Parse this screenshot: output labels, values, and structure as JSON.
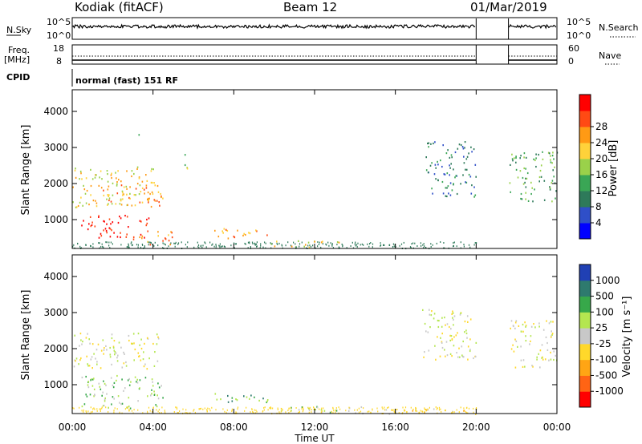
{
  "header": {
    "radar": "Kodiak (fitACF)",
    "beam": "Beam 12",
    "date": "01/Mar/2019"
  },
  "meta_panels": {
    "nsky_label": "N.Sky",
    "nsky_ticks": [
      "10^5",
      "10^0"
    ],
    "nsearch_label": "N.Search",
    "freq_label_1": "Freq.",
    "freq_label_2": "[MHz]",
    "freq_ticks": [
      "18",
      "8"
    ],
    "nave_ticks": [
      "60",
      "0"
    ],
    "nave_label": "Nave",
    "cpid_label": "CPID",
    "cpid_text": "normal (fast) 151 RF"
  },
  "colors": {
    "power_scale": [
      "#0000ff",
      "#2f4fc8",
      "#2e7a5a",
      "#3aa655",
      "#9ad14a",
      "#ffd23a",
      "#ff9a14",
      "#ff4a14",
      "#ff0000"
    ],
    "velocity_scale": [
      "#ff0000",
      "#ff6414",
      "#ffa514",
      "#ffd82a",
      "#c8c8c8",
      "#b4e650",
      "#37a84a",
      "#2e7a6e",
      "#2040b4"
    ]
  },
  "chart_data": [
    {
      "type": "heatmap",
      "name": "power",
      "ylabel": "Slant Range [km]",
      "yticks": [
        1000,
        2000,
        3000,
        4000
      ],
      "ylim": [
        200,
        4600
      ],
      "xlim_hours": [
        0,
        24
      ],
      "xtick_labels": [
        "00:00",
        "04:00",
        "08:00",
        "12:00",
        "16:00",
        "20:00",
        "00:00"
      ],
      "colorbar_label": "Power [dB]",
      "colorbar_ticks": [
        "4",
        "8",
        "12",
        "16",
        "20",
        "24",
        "28"
      ],
      "regions": [
        {
          "t0": 0.0,
          "t1": 4.2,
          "r0": 1350,
          "r1": 2500,
          "level": 5
        },
        {
          "t0": 0.4,
          "t1": 3.8,
          "r0": 500,
          "r1": 1150,
          "level": 8
        },
        {
          "t0": 1.5,
          "t1": 4.5,
          "r0": 1400,
          "r1": 2000,
          "level": 6
        },
        {
          "t0": 3.0,
          "t1": 5.0,
          "r0": 300,
          "r1": 700,
          "level": 6
        },
        {
          "t0": 3.2,
          "t1": 3.4,
          "r0": 3300,
          "r1": 3450,
          "level": 3
        },
        {
          "t0": 5.5,
          "t1": 5.8,
          "r0": 2400,
          "r1": 2950,
          "level": 4
        },
        {
          "t0": 7.0,
          "t1": 10.0,
          "r0": 500,
          "r1": 780,
          "level": 6
        },
        {
          "t0": 9.8,
          "t1": 13.5,
          "r0": 250,
          "r1": 450,
          "level": 5
        },
        {
          "t0": 17.5,
          "t1": 20.0,
          "r0": 1650,
          "r1": 3200,
          "level": 2
        },
        {
          "t0": 21.6,
          "t1": 24.0,
          "r0": 1500,
          "r1": 2900,
          "level": 3
        }
      ]
    },
    {
      "type": "heatmap",
      "name": "velocity",
      "ylabel": "Slant Range [km]",
      "yticks": [
        1000,
        2000,
        3000,
        4000
      ],
      "ylim": [
        200,
        4600
      ],
      "xlim_hours": [
        0,
        24
      ],
      "xtick_labels": [
        "00:00",
        "04:00",
        "08:00",
        "12:00",
        "16:00",
        "20:00",
        "00:00"
      ],
      "xlabel": "Time UT",
      "colorbar_label": "Velocity [m s⁻¹]",
      "colorbar_ticks": [
        "1000",
        "500",
        "100",
        "25",
        "-25",
        "-100",
        "-500",
        "-1000"
      ],
      "regions": [
        {
          "t0": 0.0,
          "t1": 4.3,
          "r0": 1450,
          "r1": 2450,
          "level": 4
        },
        {
          "t0": 0.4,
          "t1": 4.5,
          "r0": 350,
          "r1": 1300,
          "level": 5
        },
        {
          "t0": 7.0,
          "t1": 10.0,
          "r0": 500,
          "r1": 780,
          "level": 6
        },
        {
          "t0": 9.8,
          "t1": 14.5,
          "r0": 250,
          "r1": 420,
          "level": 5
        },
        {
          "t0": 14.0,
          "t1": 20.0,
          "r0": 200,
          "r1": 350,
          "level": 3
        },
        {
          "t0": 17.3,
          "t1": 20.0,
          "r0": 1700,
          "r1": 3100,
          "level": 4
        },
        {
          "t0": 21.6,
          "t1": 24.0,
          "r0": 1500,
          "r1": 2800,
          "level": 4
        }
      ]
    }
  ]
}
